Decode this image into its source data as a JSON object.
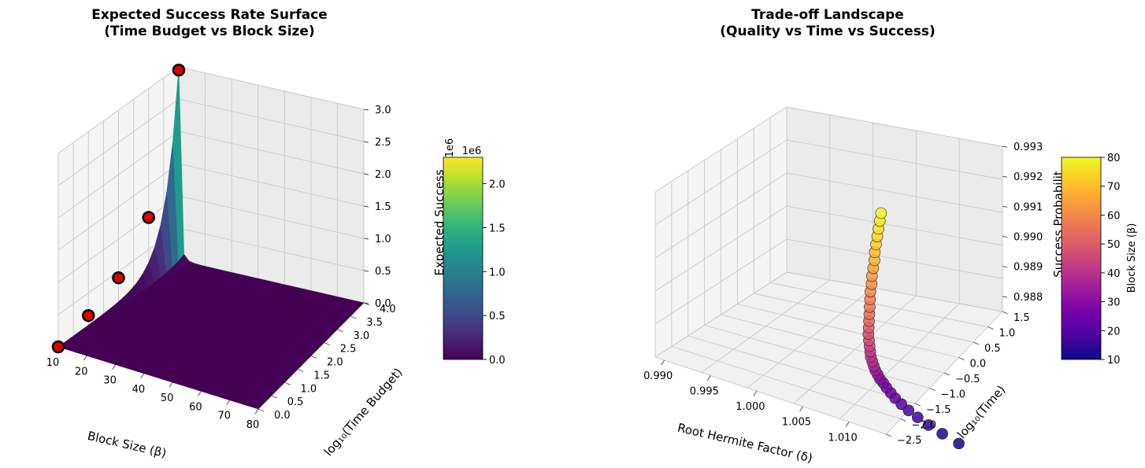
{
  "chart_data": [
    {
      "type": "surface3d",
      "title_line1": "Expected Success Rate Surface",
      "title_line2": "(Time Budget vs Block Size)",
      "xlabel": "Block Size (β)",
      "ylabel": "log₁₀(Time Budget)",
      "zlabel": "Expected Success",
      "zlabel_visible": "Expected Success",
      "z_scale_text": "1e6",
      "xlim": [
        10,
        80
      ],
      "ylim": [
        0,
        4
      ],
      "zlim": [
        0,
        3000000
      ],
      "x_ticks": [
        "10",
        "20",
        "30",
        "40",
        "50",
        "60",
        "70",
        "80"
      ],
      "y_ticks": [
        "0.0",
        "0.5",
        "1.0",
        "1.5",
        "2.0",
        "2.5",
        "3.0",
        "3.5",
        "4.0"
      ],
      "z_ticks": [
        "0.0",
        "0.5",
        "1.0",
        "1.5",
        "2.0",
        "2.5",
        "3.0"
      ],
      "surface_model": "z = 10^y / (beta - 9)^3 scaled; peak at beta=10, y=4",
      "highlight_points": [
        {
          "x": 10,
          "y": 4.0,
          "z": 2950000
        },
        {
          "x": 10,
          "y": 3.0,
          "z": 1000000
        },
        {
          "x": 10,
          "y": 2.0,
          "z": 400000
        },
        {
          "x": 10,
          "y": 1.0,
          "z": 150000
        },
        {
          "x": 10,
          "y": 0.0,
          "z": 0
        }
      ],
      "colorbar": {
        "colormap": "viridis",
        "min": 0,
        "max": 2300000,
        "scale_text": "1e6",
        "ticks": [
          "0.0",
          "0.5",
          "1.0",
          "1.5",
          "2.0"
        ]
      }
    },
    {
      "type": "scatter3d",
      "title_line1": "Trade-off Landscape",
      "title_line2": "(Quality vs Time vs Success)",
      "xlabel": "Root Hermite Factor (δ)",
      "ylabel": "log₁₀(Time)",
      "zlabel": "Success Probability",
      "zlabel_visible": "Success Probabilit",
      "xlim": [
        0.989,
        1.014
      ],
      "ylim": [
        -2.5,
        1.5
      ],
      "zlim": [
        0.9875,
        0.993
      ],
      "x_ticks": [
        "0.990",
        "0.995",
        "1.000",
        "1.005",
        "1.010"
      ],
      "y_ticks": [
        "-2.5",
        "-2.0",
        "-1.5",
        "-1.0",
        "-0.5",
        "0.0",
        "0.5",
        "1.0",
        "1.5"
      ],
      "z_ticks": [
        "0.988",
        "0.989",
        "0.990",
        "0.991",
        "0.992",
        "0.993"
      ],
      "points": [
        {
          "beta": 10,
          "delta": 1.0219,
          "logt": -2.5,
          "p": 0.988
        },
        {
          "beta": 12,
          "delta": 1.0198,
          "logt": -2.4,
          "p": 0.988
        },
        {
          "beta": 14,
          "delta": 1.018,
          "logt": -2.3,
          "p": 0.988
        },
        {
          "beta": 16,
          "delta": 1.0165,
          "logt": -2.2,
          "p": 0.988
        },
        {
          "beta": 18,
          "delta": 1.0152,
          "logt": -2.1,
          "p": 0.988
        },
        {
          "beta": 20,
          "delta": 1.0141,
          "logt": -2.0,
          "p": 0.988
        },
        {
          "beta": 22,
          "delta": 1.0131,
          "logt": -1.9,
          "p": 0.988
        },
        {
          "beta": 24,
          "delta": 1.0123,
          "logt": -1.8,
          "p": 0.988
        },
        {
          "beta": 26,
          "delta": 1.0115,
          "logt": -1.7,
          "p": 0.988
        },
        {
          "beta": 28,
          "delta": 1.0109,
          "logt": -1.62,
          "p": 0.98802
        },
        {
          "beta": 30,
          "delta": 1.0103,
          "logt": -1.55,
          "p": 0.98803
        },
        {
          "beta": 32,
          "delta": 1.0098,
          "logt": -1.47,
          "p": 0.98805
        },
        {
          "beta": 34,
          "delta": 1.0093,
          "logt": -1.4,
          "p": 0.98808
        },
        {
          "beta": 36,
          "delta": 1.0089,
          "logt": -1.33,
          "p": 0.98812
        },
        {
          "beta": 38,
          "delta": 1.0085,
          "logt": -1.26,
          "p": 0.98817
        },
        {
          "beta": 40,
          "delta": 1.0081,
          "logt": -1.19,
          "p": 0.98823
        },
        {
          "beta": 42,
          "delta": 1.0078,
          "logt": -1.12,
          "p": 0.98831
        },
        {
          "beta": 44,
          "delta": 1.0075,
          "logt": -1.05,
          "p": 0.9884
        },
        {
          "beta": 46,
          "delta": 1.0072,
          "logt": -0.98,
          "p": 0.9885
        },
        {
          "beta": 48,
          "delta": 1.0069,
          "logt": -0.91,
          "p": 0.98862
        },
        {
          "beta": 50,
          "delta": 1.0067,
          "logt": -0.84,
          "p": 0.98875
        },
        {
          "beta": 52,
          "delta": 1.0065,
          "logt": -0.77,
          "p": 0.98889
        },
        {
          "beta": 54,
          "delta": 1.0063,
          "logt": -0.7,
          "p": 0.98904
        },
        {
          "beta": 56,
          "delta": 1.0061,
          "logt": -0.63,
          "p": 0.9892
        },
        {
          "beta": 58,
          "delta": 1.0059,
          "logt": -0.56,
          "p": 0.98937
        },
        {
          "beta": 60,
          "delta": 1.0057,
          "logt": -0.49,
          "p": 0.98955
        },
        {
          "beta": 62,
          "delta": 1.0056,
          "logt": -0.42,
          "p": 0.98973
        },
        {
          "beta": 64,
          "delta": 1.0054,
          "logt": -0.35,
          "p": 0.98992
        },
        {
          "beta": 66,
          "delta": 1.0053,
          "logt": -0.28,
          "p": 0.99011
        },
        {
          "beta": 68,
          "delta": 1.0052,
          "logt": -0.21,
          "p": 0.9903
        },
        {
          "beta": 70,
          "delta": 1.005,
          "logt": -0.14,
          "p": 0.99049
        },
        {
          "beta": 72,
          "delta": 1.0049,
          "logt": -0.07,
          "p": 0.99068
        },
        {
          "beta": 74,
          "delta": 1.0048,
          "logt": 0.0,
          "p": 0.99087
        },
        {
          "beta": 76,
          "delta": 1.0047,
          "logt": 0.07,
          "p": 0.99106
        },
        {
          "beta": 78,
          "delta": 1.0046,
          "logt": 0.14,
          "p": 0.99125
        },
        {
          "beta": 80,
          "delta": 1.0045,
          "logt": 0.21,
          "p": 0.99144
        }
      ],
      "colorbar": {
        "colormap": "plasma",
        "label": "Block Size (β)",
        "min": 10,
        "max": 80,
        "ticks": [
          "10",
          "20",
          "30",
          "40",
          "50",
          "60",
          "70",
          "80"
        ]
      }
    }
  ]
}
